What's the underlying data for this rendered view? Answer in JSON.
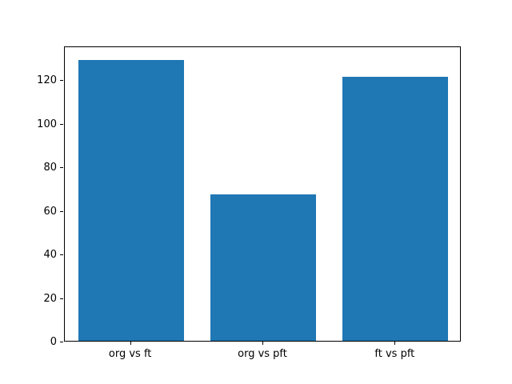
{
  "chart_data": {
    "type": "bar",
    "categories": [
      "org vs ft",
      "org vs pft",
      "ft vs pft"
    ],
    "values": [
      129,
      67,
      121
    ],
    "title": "",
    "xlabel": "",
    "ylabel": "",
    "ylim": [
      0,
      135.45
    ],
    "yticks": [
      0,
      20,
      40,
      60,
      80,
      100,
      120
    ],
    "bar_color": "#1f77b4",
    "axes_color": "#000000",
    "background_color": "#ffffff",
    "grid": false,
    "legend": null,
    "bar_width_fraction": 0.8
  }
}
